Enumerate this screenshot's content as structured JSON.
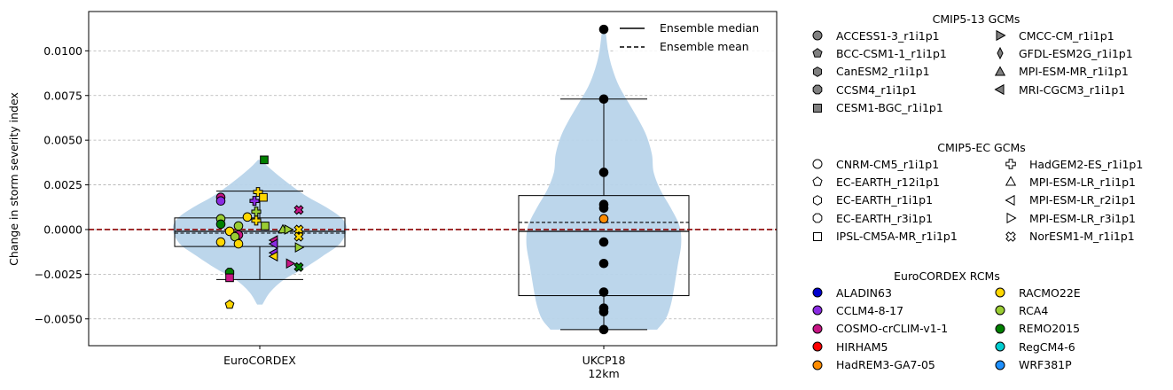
{
  "chart_data": {
    "type": "violin-box-scatter",
    "ylabel": "Change in storm severity index",
    "ylim": [
      -0.0065,
      0.0122
    ],
    "yticks": [
      -0.005,
      -0.0025,
      0.0,
      0.0025,
      0.005,
      0.0075,
      0.01
    ],
    "ytick_labels": [
      "−0.0050",
      "−0.0025",
      "0.0000",
      "0.0025",
      "0.0050",
      "0.0075",
      "0.0100"
    ],
    "grid": "y-dashed",
    "zero_line_color": "#8b0000",
    "violin_color": "#b8d4ea",
    "groups": [
      {
        "label": "EuroCORDEX",
        "box": {
          "whisker_low": -0.0028,
          "q1": -0.00095,
          "median": -0.0001,
          "mean": -0.0002,
          "q3": 0.00065,
          "whisker_high": 0.00215
        },
        "violin": {
          "ymin": -0.0042,
          "ymax": 0.0039,
          "profile": [
            [
              -0.0042,
              0.03
            ],
            [
              -0.0035,
              0.12
            ],
            [
              -0.0028,
              0.28
            ],
            [
              -0.0022,
              0.5
            ],
            [
              -0.0015,
              0.72
            ],
            [
              -0.0008,
              0.92
            ],
            [
              0.0,
              1.0
            ],
            [
              0.0006,
              0.95
            ],
            [
              0.0012,
              0.78
            ],
            [
              0.0018,
              0.56
            ],
            [
              0.0024,
              0.38
            ],
            [
              0.003,
              0.22
            ],
            [
              0.0035,
              0.1
            ],
            [
              0.0039,
              0.02
            ]
          ]
        },
        "points": [
          {
            "y": 0.0039,
            "gcm": "CESM1-BGC_r1i1p1",
            "rcm": "REMO2015"
          },
          {
            "y": 0.0021,
            "gcm": "HadGEM2-ES_r1i1p1",
            "rcm": "RACMO22E"
          },
          {
            "y": 0.0018,
            "gcm": "IPSL-CM5A-MR_r1i1p1",
            "rcm": "RACMO22E"
          },
          {
            "y": 0.0018,
            "gcm": "ACCESS1-3_r1i1p1",
            "rcm": "COSMO-crCLIM-v1-1"
          },
          {
            "y": 0.0016,
            "gcm": "ACCESS1-3_r1i1p1",
            "rcm": "CCLM4-8-17"
          },
          {
            "y": 0.0016,
            "gcm": "HadGEM2-ES_r1i1p1",
            "rcm": "CCLM4-8-17"
          },
          {
            "y": 0.0011,
            "gcm": "NorESM1-M_r1i1p1",
            "rcm": "COSMO-crCLIM-v1-1"
          },
          {
            "y": 0.001,
            "gcm": "HadGEM2-ES_r1i1p1",
            "rcm": "RCA4"
          },
          {
            "y": 0.0007,
            "gcm": "ACCESS1-3_r1i1p1",
            "rcm": "RACMO22E"
          },
          {
            "y": 0.0006,
            "gcm": "ACCESS1-3_r1i1p1",
            "rcm": "RCA4"
          },
          {
            "y": 0.0005,
            "gcm": "HadGEM2-ES_r1i1p1",
            "rcm": "RACMO22E"
          },
          {
            "y": 0.0003,
            "gcm": "ACCESS1-3_r1i1p1",
            "rcm": "REMO2015"
          },
          {
            "y": 0.0002,
            "gcm": "ACCESS1-3_r1i1p1",
            "rcm": "RCA4"
          },
          {
            "y": 0.0002,
            "gcm": "IPSL-CM5A-MR_r1i1p1",
            "rcm": "RCA4"
          },
          {
            "y": 0.0,
            "gcm": "MPI-ESM-MR_r1i1p1",
            "rcm": "RCA4"
          },
          {
            "y": 0.0,
            "gcm": "CMCC-CM_r1i1p1",
            "rcm": "RCA4"
          },
          {
            "y": 0.0,
            "gcm": "NorESM1-M_r1i1p1",
            "rcm": "RACMO22E"
          },
          {
            "y": -0.0001,
            "gcm": "ACCESS1-3_r1i1p1",
            "rcm": "RACMO22E"
          },
          {
            "y": -0.0003,
            "gcm": "ACCESS1-3_r1i1p1",
            "rcm": "COSMO-crCLIM-v1-1"
          },
          {
            "y": -0.0004,
            "gcm": "ACCESS1-3_r1i1p1",
            "rcm": "RCA4"
          },
          {
            "y": -0.0004,
            "gcm": "NorESM1-M_r1i1p1",
            "rcm": "RACMO22E"
          },
          {
            "y": -0.0006,
            "gcm": "MRI-CGCM3_r1i1p1",
            "rcm": "COSMO-crCLIM-v1-1"
          },
          {
            "y": -0.0007,
            "gcm": "ACCESS1-3_r1i1p1",
            "rcm": "RACMO22E"
          },
          {
            "y": -0.0008,
            "gcm": "ACCESS1-3_r1i1p1",
            "rcm": "RACMO22E"
          },
          {
            "y": -0.0008,
            "gcm": "MRI-CGCM3_r1i1p1",
            "rcm": "CCLM4-8-17"
          },
          {
            "y": -0.001,
            "gcm": "CMCC-CM_r1i1p1",
            "rcm": "RCA4"
          },
          {
            "y": -0.0013,
            "gcm": "MRI-CGCM3_r1i1p1",
            "rcm": "CCLM4-8-17"
          },
          {
            "y": -0.0015,
            "gcm": "MRI-CGCM3_r1i1p1",
            "rcm": "RACMO22E"
          },
          {
            "y": -0.0019,
            "gcm": "CMCC-CM_r1i1p1",
            "rcm": "COSMO-crCLIM-v1-1"
          },
          {
            "y": -0.0021,
            "gcm": "NorESM1-M_r1i1p1",
            "rcm": "REMO2015"
          },
          {
            "y": -0.0024,
            "gcm": "CCSM4_r1i1p1",
            "rcm": "REMO2015"
          },
          {
            "y": -0.0027,
            "gcm": "CESM1-BGC_r1i1p1",
            "rcm": "COSMO-crCLIM-v1-1"
          },
          {
            "y": -0.0042,
            "gcm": "EC-EARTH_r12i1p1",
            "rcm": "RACMO22E"
          }
        ]
      },
      {
        "label": "UKCP18",
        "label2": "12km",
        "box": {
          "whisker_low": -0.0056,
          "q1": -0.0037,
          "median": -0.0001,
          "mean": 0.0004,
          "q3": 0.0019,
          "whisker_high": 0.0073
        },
        "violin": {
          "ymin": -0.0056,
          "ymax": 0.0112,
          "profile": [
            [
              -0.0056,
              0.62
            ],
            [
              -0.005,
              0.72
            ],
            [
              -0.0042,
              0.78
            ],
            [
              -0.0032,
              0.82
            ],
            [
              -0.002,
              0.86
            ],
            [
              -0.0008,
              0.9
            ],
            [
              0.0002,
              0.88
            ],
            [
              0.0012,
              0.78
            ],
            [
              0.0022,
              0.66
            ],
            [
              0.0032,
              0.58
            ],
            [
              0.0042,
              0.56
            ],
            [
              0.0052,
              0.5
            ],
            [
              0.006,
              0.42
            ],
            [
              0.007,
              0.3
            ],
            [
              0.008,
              0.18
            ],
            [
              0.009,
              0.1
            ],
            [
              0.01,
              0.05
            ],
            [
              0.0112,
              0.02
            ]
          ]
        },
        "points": [
          {
            "y": 0.0112,
            "color": "#000000"
          },
          {
            "y": 0.0073,
            "color": "#000000"
          },
          {
            "y": 0.0032,
            "color": "#000000"
          },
          {
            "y": 0.0014,
            "color": "#000000"
          },
          {
            "y": 0.0012,
            "color": "#000000"
          },
          {
            "y": 0.0006,
            "color": "#ff8c00"
          },
          {
            "y": -0.0007,
            "color": "#000000"
          },
          {
            "y": -0.0019,
            "color": "#000000"
          },
          {
            "y": -0.0035,
            "color": "#000000"
          },
          {
            "y": -0.0044,
            "color": "#000000"
          },
          {
            "y": -0.0046,
            "color": "#000000"
          },
          {
            "y": -0.0056,
            "color": "#000000"
          }
        ]
      }
    ],
    "inline_legend": [
      {
        "label": "Ensemble median",
        "style": "solid"
      },
      {
        "label": "Ensemble mean",
        "style": "dashed"
      }
    ],
    "legends": [
      {
        "title": "CMIP5-13 GCMs",
        "fill": "#808080",
        "columns": [
          [
            {
              "label": "ACCESS1-3_r1i1p1",
              "marker": "circle"
            },
            {
              "label": "BCC-CSM1-1_r1i1p1",
              "marker": "pentagon"
            },
            {
              "label": "CanESM2_r1i1p1",
              "marker": "hexagon"
            },
            {
              "label": "CCSM4_r1i1p1",
              "marker": "octagon"
            },
            {
              "label": "CESM1-BGC_r1i1p1",
              "marker": "square"
            }
          ],
          [
            {
              "label": "CMCC-CM_r1i1p1",
              "marker": "tri-right"
            },
            {
              "label": "GFDL-ESM2G_r1i1p1",
              "marker": "thin-diamond"
            },
            {
              "label": "MPI-ESM-MR_r1i1p1",
              "marker": "tri-up"
            },
            {
              "label": "MRI-CGCM3_r1i1p1",
              "marker": "tri-left"
            }
          ]
        ]
      },
      {
        "title": "CMIP5-EC GCMs",
        "fill": "#ffffff",
        "columns": [
          [
            {
              "label": "CNRM-CM5_r1i1p1",
              "marker": "circle"
            },
            {
              "label": "EC-EARTH_r12i1p1",
              "marker": "pentagon"
            },
            {
              "label": "EC-EARTH_r1i1p1",
              "marker": "hexagon"
            },
            {
              "label": "EC-EARTH_r3i1p1",
              "marker": "octagon"
            },
            {
              "label": "IPSL-CM5A-MR_r1i1p1",
              "marker": "square"
            }
          ],
          [
            {
              "label": "HadGEM2-ES_r1i1p1",
              "marker": "plus"
            },
            {
              "label": "MPI-ESM-LR_r1i1p1",
              "marker": "tri-up"
            },
            {
              "label": "MPI-ESM-LR_r2i1p1",
              "marker": "tri-left"
            },
            {
              "label": "MPI-ESM-LR_r3i1p1",
              "marker": "tri-right"
            },
            {
              "label": "NorESM1-M_r1i1p1",
              "marker": "x"
            }
          ]
        ]
      },
      {
        "title": "EuroCORDEX RCMs",
        "columns": [
          [
            {
              "label": "ALADIN63",
              "marker": "circle",
              "color": "#0000cd"
            },
            {
              "label": "CCLM4-8-17",
              "marker": "circle",
              "color": "#8a2be2"
            },
            {
              "label": "COSMO-crCLIM-v1-1",
              "marker": "circle",
              "color": "#c71585"
            },
            {
              "label": "HIRHAM5",
              "marker": "circle",
              "color": "#ff0000"
            },
            {
              "label": "HadREM3-GA7-05",
              "marker": "circle",
              "color": "#ff8c00"
            }
          ],
          [
            {
              "label": "RACMO22E",
              "marker": "circle",
              "color": "#ffd700"
            },
            {
              "label": "RCA4",
              "marker": "circle",
              "color": "#9acd32"
            },
            {
              "label": "REMO2015",
              "marker": "circle",
              "color": "#008000"
            },
            {
              "label": "RegCM4-6",
              "marker": "circle",
              "color": "#00ced1"
            },
            {
              "label": "WRF381P",
              "marker": "circle",
              "color": "#1e90ff"
            }
          ]
        ]
      }
    ]
  }
}
